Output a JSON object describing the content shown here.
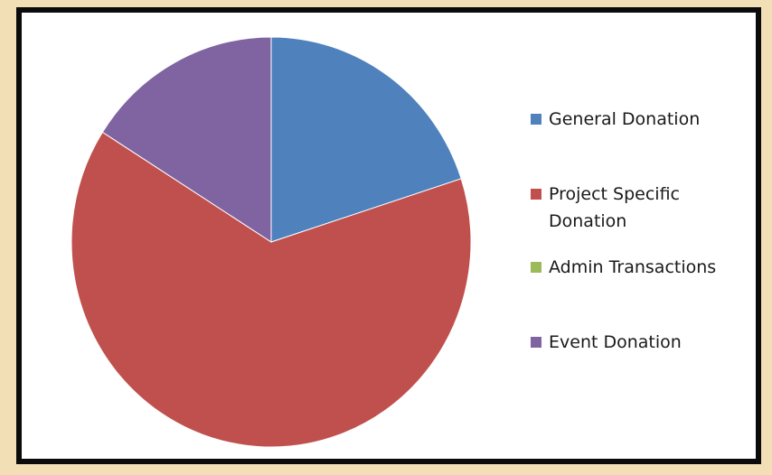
{
  "chart_data": {
    "type": "pie",
    "title": "",
    "categories": [
      "General Donation",
      "Project Specific Donation",
      "Admin Transactions",
      "Event Donation"
    ],
    "values": [
      20,
      64,
      0,
      16
    ],
    "colors": [
      "#4f81bd",
      "#c0504d",
      "#9bbb59",
      "#8064a2"
    ],
    "start_angle_deg": 0,
    "direction": "clockwise",
    "legend": "right",
    "legend_labels": [
      [
        "General Donation"
      ],
      [
        "Project Specific",
        "Donation"
      ],
      [
        "Admin Transactions"
      ],
      [
        "Event Donation"
      ]
    ]
  }
}
